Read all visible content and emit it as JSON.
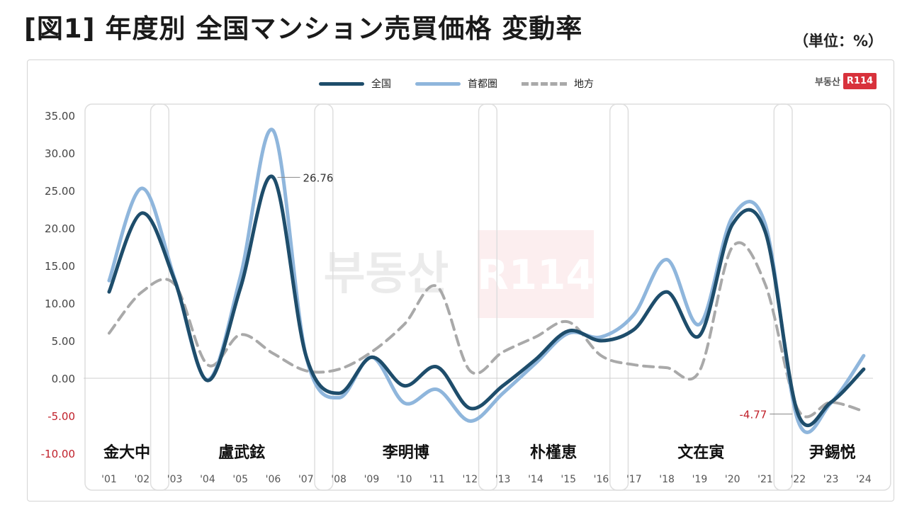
{
  "title": "[図1] 年度別 全国マンション売買価格 変動率",
  "unit_label": "（単位：%）",
  "brand": {
    "korean": "부동산",
    "code": "R114",
    "color": "#d8323c"
  },
  "watermark": {
    "korean": "부동산",
    "code": "R114"
  },
  "legend": [
    {
      "name": "全国",
      "color": "#1e4d6b",
      "style": "solid"
    },
    {
      "name": "首都圏",
      "color": "#8fb6dc",
      "style": "solid"
    },
    {
      "name": "地方",
      "color": "#a9a9a9",
      "style": "dashed"
    }
  ],
  "chart_data": {
    "type": "line",
    "categories": [
      "'01",
      "'02",
      "'03",
      "'04",
      "'05",
      "'06",
      "'07",
      "'08",
      "'09",
      "'10",
      "'11",
      "'12",
      "'13",
      "'14",
      "'15",
      "'16",
      "'17",
      "'18",
      "'19",
      "'20",
      "'21",
      "'22",
      "'23",
      "'24"
    ],
    "series": [
      {
        "name": "全国",
        "color": "#1e4d6b",
        "values": [
          11.5,
          22.0,
          13.0,
          -0.3,
          12.0,
          26.76,
          3.0,
          -2.0,
          2.8,
          -1.0,
          1.5,
          -4.0,
          -1.0,
          2.5,
          6.3,
          5.0,
          6.5,
          11.5,
          5.7,
          20.5,
          19.5,
          -4.77,
          -3.2,
          1.2
        ]
      },
      {
        "name": "首都圏",
        "color": "#8fb6dc",
        "values": [
          13.0,
          25.3,
          13.2,
          -0.2,
          13.5,
          33.0,
          3.0,
          -2.6,
          2.8,
          -3.3,
          -1.5,
          -5.7,
          -2.0,
          2.0,
          6.0,
          5.5,
          8.5,
          15.8,
          7.2,
          21.5,
          20.5,
          -5.7,
          -3.3,
          3.0
        ]
      },
      {
        "name": "地方",
        "color": "#a9a9a9",
        "values": [
          6.0,
          11.5,
          12.5,
          1.8,
          5.8,
          3.3,
          1.0,
          1.2,
          3.5,
          7.2,
          12.2,
          1.0,
          3.5,
          5.5,
          7.5,
          3.0,
          1.8,
          1.4,
          1.0,
          17.5,
          12.5,
          -4.2,
          -3.2,
          -4.4
        ]
      }
    ],
    "y_ticks": [
      "35.00",
      "30.00",
      "25.00",
      "20.00",
      "15.00",
      "10.00",
      "5.00",
      "0.00",
      "-5.00",
      "-10.00"
    ],
    "ylim": [
      -10,
      35
    ],
    "periods": [
      {
        "name": "金大中",
        "years": [
          "'01",
          "'02"
        ]
      },
      {
        "name": "盧武鉉",
        "years": [
          "'03",
          "'07"
        ]
      },
      {
        "name": "李明博",
        "years": [
          "'08",
          "'12"
        ]
      },
      {
        "name": "朴槿恵",
        "years": [
          "'13",
          "'16"
        ]
      },
      {
        "name": "文在寅",
        "years": [
          "'17",
          "'21"
        ]
      },
      {
        "name": "尹錫悦",
        "years": [
          "'22",
          "'24"
        ]
      }
    ],
    "annotations": [
      {
        "text": "26.76",
        "x": "'06",
        "series": "全国",
        "color": "#333333"
      },
      {
        "text": "-4.77",
        "x": "'22",
        "series": "全国",
        "color": "#c0202a"
      }
    ]
  }
}
